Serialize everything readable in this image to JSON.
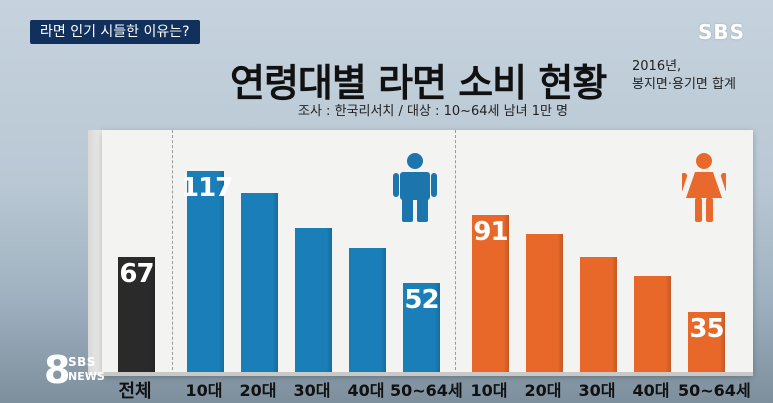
{
  "header": {
    "tag": "라면 인기 시들한 이유는?",
    "broadcaster": "SBS"
  },
  "title": "연령대별 라면 소비 현황",
  "note_year": "2016년,",
  "note_scope": "봉지면·용기면 합계",
  "survey_note": "조사 : 한국리서치  /  대상 : 10~64세 남녀 1만 명",
  "badge": {
    "number": "8",
    "sbs": "SBS",
    "news": "NEWS"
  },
  "colors": {
    "total": "#2a2a2a",
    "male": "#1a7fb8",
    "female": "#e8682a",
    "male_icon": "#1d75ad",
    "female_icon": "#e8692b"
  },
  "icons": {
    "male": "male-person-icon",
    "female": "female-person-icon"
  },
  "chart_data": {
    "type": "bar",
    "title": "연령대별 라면 소비 현황",
    "ylim": [
      0,
      130
    ],
    "grid": false,
    "legend": "none",
    "groups": [
      {
        "name": "전체",
        "categories": [
          "전체"
        ],
        "values": [
          67
        ]
      },
      {
        "name": "male",
        "categories": [
          "10대",
          "20대",
          "30대",
          "40대",
          "50~64세"
        ],
        "values": [
          117,
          104,
          84,
          72,
          52
        ]
      },
      {
        "name": "female",
        "categories": [
          "10대",
          "20대",
          "30대",
          "40대",
          "50~64세"
        ],
        "values": [
          91,
          80,
          67,
          56,
          35
        ]
      }
    ],
    "labeled_values": {
      "total": "67",
      "male_10": "117",
      "male_50": "52",
      "female_10": "91",
      "female_50": "35"
    }
  }
}
